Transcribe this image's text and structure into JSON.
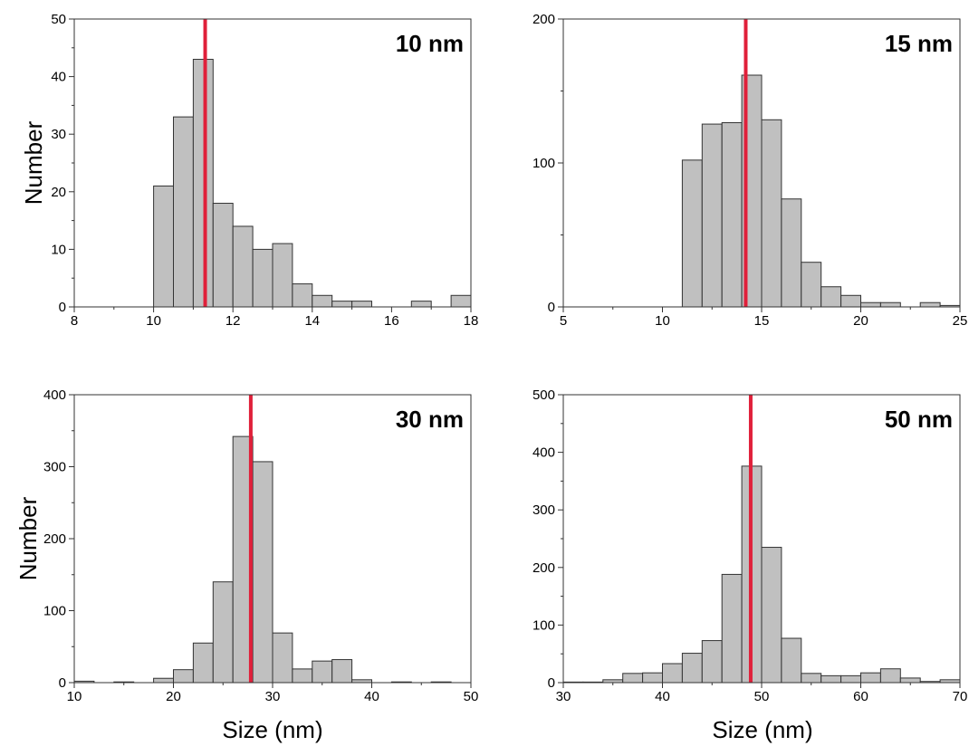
{
  "colors": {
    "bar_fill": "#c0c0c0",
    "bar_edge": "#333333",
    "marker": "#e0203a"
  },
  "labels": {
    "ylabel_top": "Number",
    "ylabel_bottom": "Number",
    "xlabel_left": "Size (nm)",
    "xlabel_right": "Size (nm)"
  },
  "chart_data": [
    {
      "type": "bar",
      "label": "10 nm",
      "xlim": [
        8,
        18
      ],
      "ylim": [
        0,
        50
      ],
      "xticks": [
        8,
        10,
        12,
        14,
        16,
        18
      ],
      "yticks": [
        0,
        10,
        20,
        30,
        40,
        50
      ],
      "bins": [
        {
          "start": 10.0,
          "end": 10.5,
          "value": 21
        },
        {
          "start": 10.5,
          "end": 11.0,
          "value": 33
        },
        {
          "start": 11.0,
          "end": 11.5,
          "value": 43
        },
        {
          "start": 11.5,
          "end": 12.0,
          "value": 18
        },
        {
          "start": 12.0,
          "end": 12.5,
          "value": 14
        },
        {
          "start": 12.5,
          "end": 13.0,
          "value": 10
        },
        {
          "start": 13.0,
          "end": 13.5,
          "value": 11
        },
        {
          "start": 13.5,
          "end": 14.0,
          "value": 4
        },
        {
          "start": 14.0,
          "end": 14.5,
          "value": 2
        },
        {
          "start": 14.5,
          "end": 15.0,
          "value": 1
        },
        {
          "start": 15.0,
          "end": 15.5,
          "value": 1
        },
        {
          "start": 16.5,
          "end": 17.0,
          "value": 1
        },
        {
          "start": 17.5,
          "end": 18.0,
          "value": 2
        }
      ],
      "marker_x": 11.3
    },
    {
      "type": "bar",
      "label": "15 nm",
      "xlim": [
        5,
        25
      ],
      "ylim": [
        0,
        200
      ],
      "xticks": [
        5,
        10,
        15,
        20,
        25
      ],
      "yticks": [
        0,
        100,
        200
      ],
      "bins": [
        {
          "start": 11,
          "end": 12,
          "value": 102
        },
        {
          "start": 12,
          "end": 13,
          "value": 127
        },
        {
          "start": 13,
          "end": 14,
          "value": 128
        },
        {
          "start": 14,
          "end": 15,
          "value": 161
        },
        {
          "start": 15,
          "end": 16,
          "value": 130
        },
        {
          "start": 16,
          "end": 17,
          "value": 75
        },
        {
          "start": 17,
          "end": 18,
          "value": 31
        },
        {
          "start": 18,
          "end": 19,
          "value": 14
        },
        {
          "start": 19,
          "end": 20,
          "value": 8
        },
        {
          "start": 20,
          "end": 21,
          "value": 3
        },
        {
          "start": 21,
          "end": 22,
          "value": 3
        },
        {
          "start": 23,
          "end": 24,
          "value": 3
        },
        {
          "start": 24,
          "end": 25,
          "value": 1
        }
      ],
      "marker_x": 14.2
    },
    {
      "type": "bar",
      "label": "30 nm",
      "xlim": [
        10,
        50
      ],
      "ylim": [
        0,
        400
      ],
      "xticks": [
        10,
        20,
        30,
        40,
        50
      ],
      "yticks": [
        0,
        100,
        200,
        300,
        400
      ],
      "bins": [
        {
          "start": 10,
          "end": 12,
          "value": 2
        },
        {
          "start": 14,
          "end": 16,
          "value": 1
        },
        {
          "start": 18,
          "end": 20,
          "value": 6
        },
        {
          "start": 20,
          "end": 22,
          "value": 18
        },
        {
          "start": 22,
          "end": 24,
          "value": 55
        },
        {
          "start": 24,
          "end": 26,
          "value": 140
        },
        {
          "start": 26,
          "end": 28,
          "value": 342
        },
        {
          "start": 28,
          "end": 30,
          "value": 307
        },
        {
          "start": 30,
          "end": 32,
          "value": 69
        },
        {
          "start": 32,
          "end": 34,
          "value": 19
        },
        {
          "start": 34,
          "end": 36,
          "value": 30
        },
        {
          "start": 36,
          "end": 38,
          "value": 32
        },
        {
          "start": 38,
          "end": 40,
          "value": 4
        },
        {
          "start": 42,
          "end": 44,
          "value": 1
        },
        {
          "start": 46,
          "end": 48,
          "value": 1
        }
      ],
      "marker_x": 27.8
    },
    {
      "type": "bar",
      "label": "50 nm",
      "xlim": [
        30,
        70
      ],
      "ylim": [
        0,
        500
      ],
      "xticks": [
        30,
        40,
        50,
        60,
        70
      ],
      "yticks": [
        0,
        100,
        200,
        300,
        400,
        500
      ],
      "bins": [
        {
          "start": 30,
          "end": 32,
          "value": 1
        },
        {
          "start": 32,
          "end": 34,
          "value": 1
        },
        {
          "start": 34,
          "end": 36,
          "value": 5
        },
        {
          "start": 36,
          "end": 38,
          "value": 16
        },
        {
          "start": 38,
          "end": 40,
          "value": 17
        },
        {
          "start": 40,
          "end": 42,
          "value": 33
        },
        {
          "start": 42,
          "end": 44,
          "value": 51
        },
        {
          "start": 44,
          "end": 46,
          "value": 73
        },
        {
          "start": 46,
          "end": 48,
          "value": 188
        },
        {
          "start": 48,
          "end": 50,
          "value": 376
        },
        {
          "start": 50,
          "end": 52,
          "value": 235
        },
        {
          "start": 52,
          "end": 54,
          "value": 77
        },
        {
          "start": 54,
          "end": 56,
          "value": 16
        },
        {
          "start": 56,
          "end": 58,
          "value": 12
        },
        {
          "start": 58,
          "end": 60,
          "value": 12
        },
        {
          "start": 60,
          "end": 62,
          "value": 17
        },
        {
          "start": 62,
          "end": 64,
          "value": 24
        },
        {
          "start": 64,
          "end": 66,
          "value": 8
        },
        {
          "start": 66,
          "end": 68,
          "value": 2
        },
        {
          "start": 68,
          "end": 70,
          "value": 5
        }
      ],
      "marker_x": 48.9
    }
  ]
}
